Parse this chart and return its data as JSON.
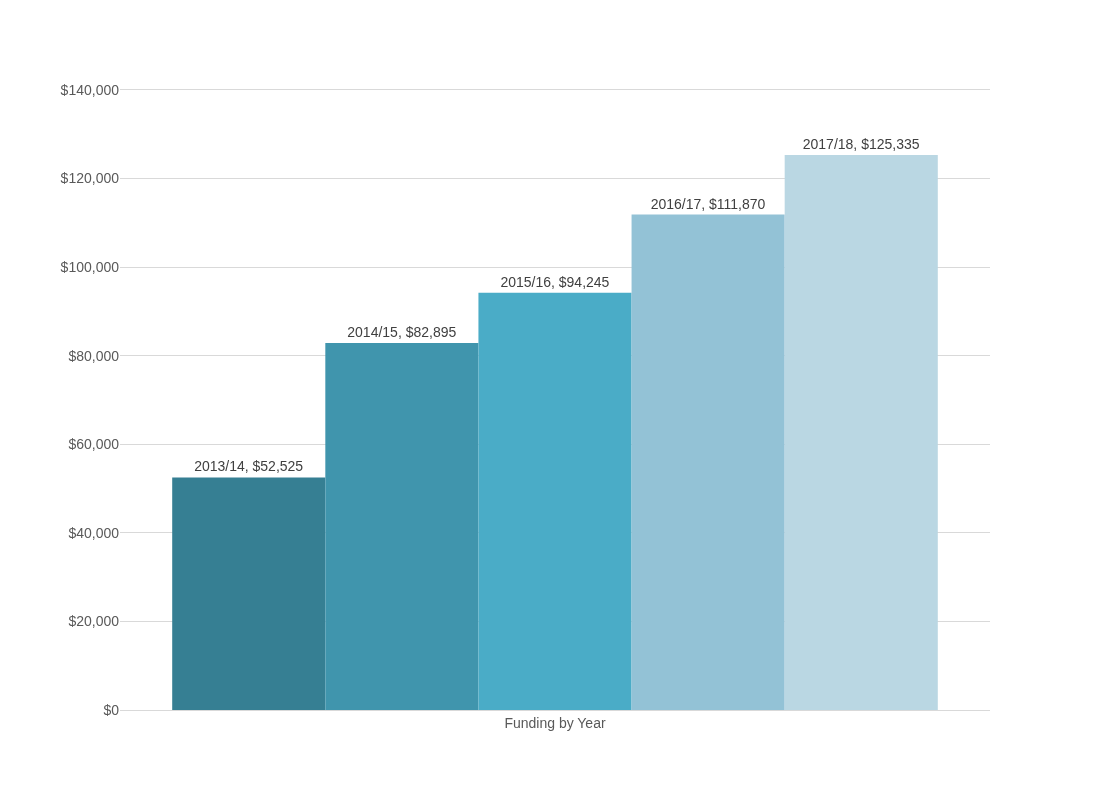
{
  "chart_data": {
    "type": "bar",
    "categories": [
      "Funding by Year"
    ],
    "series": [
      {
        "color": "#367f93",
        "values": [
          52525
        ],
        "value_labels": [
          "2013/14, $52,525"
        ]
      },
      {
        "color": "#4095ad",
        "values": [
          82895
        ],
        "value_labels": [
          "2014/15, $82,895"
        ]
      },
      {
        "color": "#4aacc7",
        "values": [
          94245
        ],
        "value_labels": [
          "2015/16, $94,245"
        ]
      },
      {
        "color": "#93c2d6",
        "values": [
          111870
        ],
        "value_labels": [
          "2016/17, $111,870"
        ]
      },
      {
        "color": "#bad7e3",
        "values": [
          125335
        ],
        "value_labels": [
          "2017/18, $125,335"
        ]
      }
    ],
    "ylim": [
      0,
      140000
    ],
    "yticks": [
      {
        "value": 0,
        "label": "$0"
      },
      {
        "value": 20000,
        "label": "$20,000"
      },
      {
        "value": 40000,
        "label": "$40,000"
      },
      {
        "value": 60000,
        "label": "$60,000"
      },
      {
        "value": 80000,
        "label": "$80,000"
      },
      {
        "value": 100000,
        "label": "$100,000"
      },
      {
        "value": 120000,
        "label": "$120,000"
      },
      {
        "value": 140000,
        "label": "$140,000"
      }
    ],
    "grid": "y"
  }
}
